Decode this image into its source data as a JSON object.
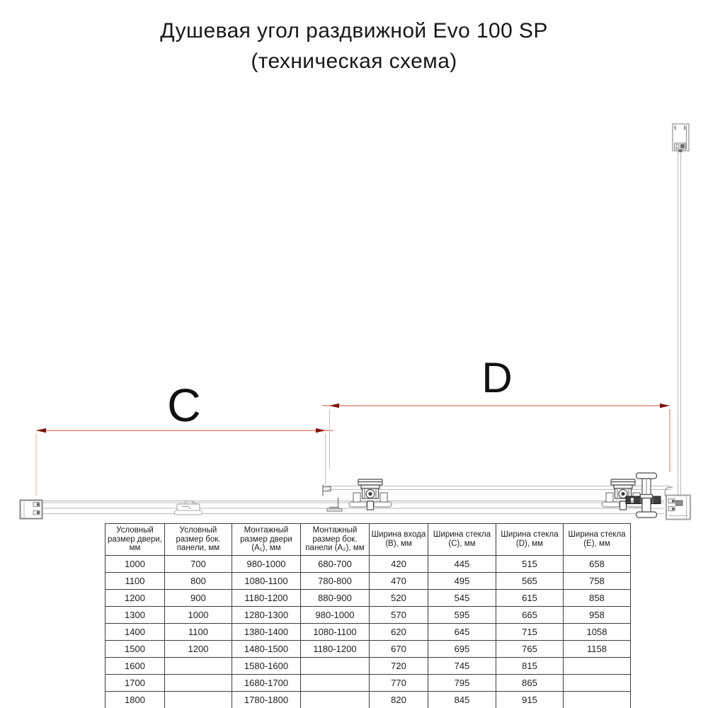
{
  "title": {
    "line1": "Душевая угол раздвижной Evo 100 SP",
    "line2": "(техническая схема)"
  },
  "diagram": {
    "dimension_c_label": "C",
    "dimension_d_label": "D",
    "colors": {
      "dimension_line": "#d04a38",
      "dimension_arrow": "#7e150b",
      "extension_line": "#e7b2a6",
      "profile_line": "#b9b9b9",
      "hardware_line": "#4b4b4b"
    }
  },
  "table": {
    "headers": [
      "Условный размер двери, мм",
      "Условный размер бок. панели, мм",
      "Монтажный размер двери (А₁), мм",
      "Монтажный размер бок. панели (А₂), мм",
      "Ширина входа (В), мм",
      "Ширина стекла (С), мм",
      "Ширина стекла (D), мм",
      "Ширина стекла (Е), мм"
    ],
    "rows": [
      [
        "1000",
        "700",
        "980-1000",
        "680-700",
        "420",
        "445",
        "515",
        "658"
      ],
      [
        "1100",
        "800",
        "1080-1100",
        "780-800",
        "470",
        "495",
        "565",
        "758"
      ],
      [
        "1200",
        "900",
        "1180-1200",
        "880-900",
        "520",
        "545",
        "615",
        "858"
      ],
      [
        "1300",
        "1000",
        "1280-1300",
        "980-1000",
        "570",
        "595",
        "665",
        "958"
      ],
      [
        "1400",
        "1100",
        "1380-1400",
        "1080-1100",
        "620",
        "645",
        "715",
        "1058"
      ],
      [
        "1500",
        "1200",
        "1480-1500",
        "1180-1200",
        "670",
        "695",
        "765",
        "1158"
      ],
      [
        "1600",
        "",
        "1580-1600",
        "",
        "720",
        "745",
        "815",
        ""
      ],
      [
        "1700",
        "",
        "1680-1700",
        "",
        "770",
        "795",
        "865",
        ""
      ],
      [
        "1800",
        "",
        "1780-1800",
        "",
        "820",
        "845",
        "915",
        ""
      ]
    ]
  }
}
